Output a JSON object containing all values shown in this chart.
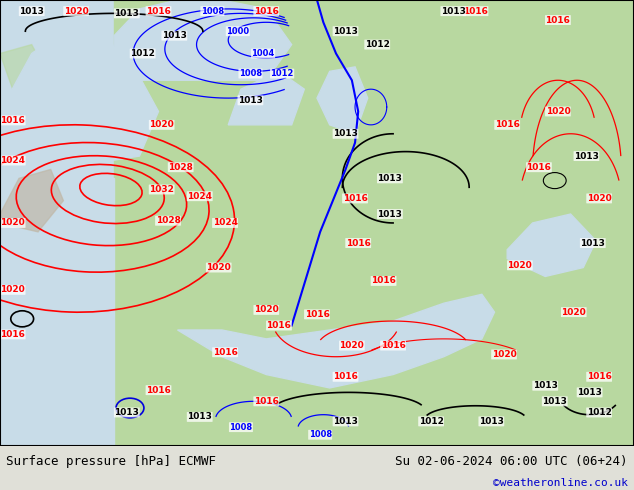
{
  "title_left": "Surface pressure [hPa] ECMWF",
  "title_right": "Su 02-06-2024 06:00 UTC (06+24)",
  "credit": "©weatheronline.co.uk",
  "credit_color": "#0000cc",
  "land_color": "#b8d8a0",
  "sea_color": "#c8dce8",
  "bg_color": "#d8d8d0",
  "fig_width": 6.34,
  "fig_height": 4.9,
  "dpi": 100
}
